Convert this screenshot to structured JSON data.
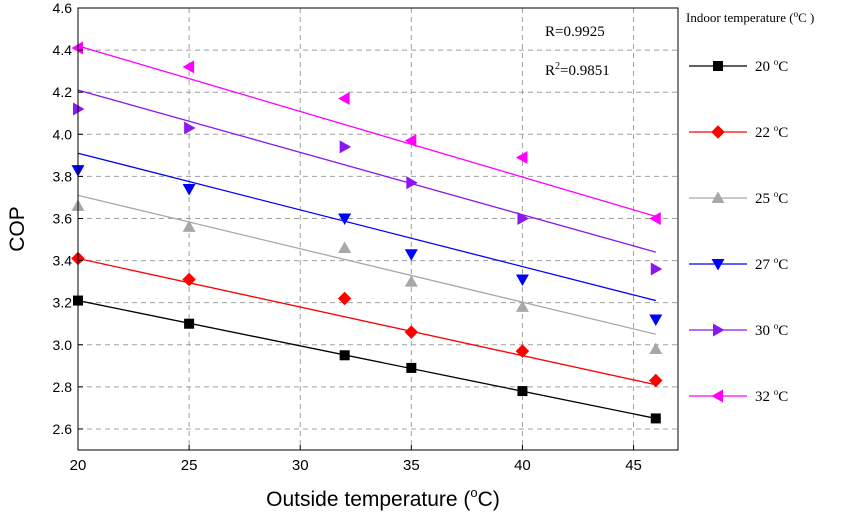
{
  "chart_data": {
    "type": "scatter",
    "title": "",
    "xlabel": "Outside temperature (°C)",
    "xlabel_parts": {
      "before": "Outside temperature (",
      "sup": "o",
      "after": "C)"
    },
    "ylabel": "COP",
    "xlim": [
      20,
      47
    ],
    "ylim": [
      2.5,
      4.6
    ],
    "x_ticks": [
      20,
      25,
      30,
      35,
      40,
      45
    ],
    "x_tick_labels": [
      "20",
      "25",
      "30",
      "35",
      "40",
      "45"
    ],
    "y_ticks": [
      2.6,
      2.8,
      3.0,
      3.2,
      3.4,
      3.6,
      3.8,
      4.0,
      4.2,
      4.4,
      4.6
    ],
    "y_tick_labels": [
      "2.6",
      "2.8",
      "3.0",
      "3.2",
      "3.4",
      "3.6",
      "3.8",
      "4.0",
      "4.2",
      "4.4",
      "4.6"
    ],
    "grid": true,
    "legend_placement": "right, outside plot",
    "legend_title": "Indoor temperature (°C )",
    "legend_title_parts": {
      "before": "Indoor temperature (",
      "sup": "o",
      "after": "C )"
    },
    "annotations": [
      {
        "key": "r",
        "text": "R=0.9925"
      },
      {
        "key": "r2",
        "parts": {
          "before": "R",
          "sup": "2",
          "after": "=0.9851"
        },
        "text": "R2=0.9851"
      }
    ],
    "series": [
      {
        "name": "20 °C",
        "label_num": "20",
        "label_unit": "C",
        "label_sup": "o",
        "color": "#000000",
        "marker": "square",
        "x": [
          20,
          25,
          32,
          35,
          40,
          46
        ],
        "y": [
          3.21,
          3.1,
          2.95,
          2.89,
          2.78,
          2.65
        ],
        "fit": [
          [
            20,
            3.21
          ],
          [
            46,
            2.65
          ]
        ]
      },
      {
        "name": "22 °C",
        "label_num": "22",
        "label_unit": "C",
        "label_sup": "o",
        "color": "#ff0000",
        "marker": "diamond",
        "x": [
          20,
          25,
          32,
          35,
          40,
          46
        ],
        "y": [
          3.41,
          3.31,
          3.22,
          3.06,
          2.97,
          2.83
        ],
        "fit": [
          [
            20,
            3.41
          ],
          [
            46,
            2.81
          ]
        ]
      },
      {
        "name": "25 °C",
        "label_num": "25",
        "label_unit": "C",
        "label_sup": "o",
        "color": "#a8a8a8",
        "marker": "triangle-up",
        "x": [
          20,
          25,
          32,
          35,
          40,
          46
        ],
        "y": [
          3.66,
          3.56,
          3.46,
          3.3,
          3.18,
          2.98
        ],
        "fit": [
          [
            20,
            3.71
          ],
          [
            46,
            3.05
          ]
        ]
      },
      {
        "name": "27 °C",
        "label_num": "27",
        "label_unit": "C",
        "label_sup": "o",
        "color": "#0000ff",
        "marker": "triangle-down",
        "x": [
          20,
          25,
          32,
          35,
          40,
          46
        ],
        "y": [
          3.83,
          3.74,
          3.6,
          3.43,
          3.31,
          3.12
        ],
        "fit": [
          [
            20,
            3.91
          ],
          [
            46,
            3.21
          ]
        ]
      },
      {
        "name": "30 °C",
        "label_num": "30",
        "label_unit": "C",
        "label_sup": "o",
        "color": "#8b18f0",
        "marker": "triangle-right",
        "x": [
          20,
          25,
          32,
          35,
          40,
          46
        ],
        "y": [
          4.12,
          4.03,
          3.94,
          3.77,
          3.6,
          3.36
        ],
        "fit": [
          [
            20,
            4.21
          ],
          [
            46,
            3.44
          ]
        ]
      },
      {
        "name": "32 °C",
        "label_num": "32",
        "label_unit": "C",
        "label_sup": "o",
        "color": "#ff00ff",
        "marker": "triangle-left",
        "x": [
          20,
          25,
          32,
          35,
          40,
          46
        ],
        "y": [
          4.41,
          4.32,
          4.17,
          3.97,
          3.89,
          3.6
        ],
        "fit": [
          [
            20,
            4.42
          ],
          [
            46,
            3.61
          ]
        ]
      }
    ]
  }
}
